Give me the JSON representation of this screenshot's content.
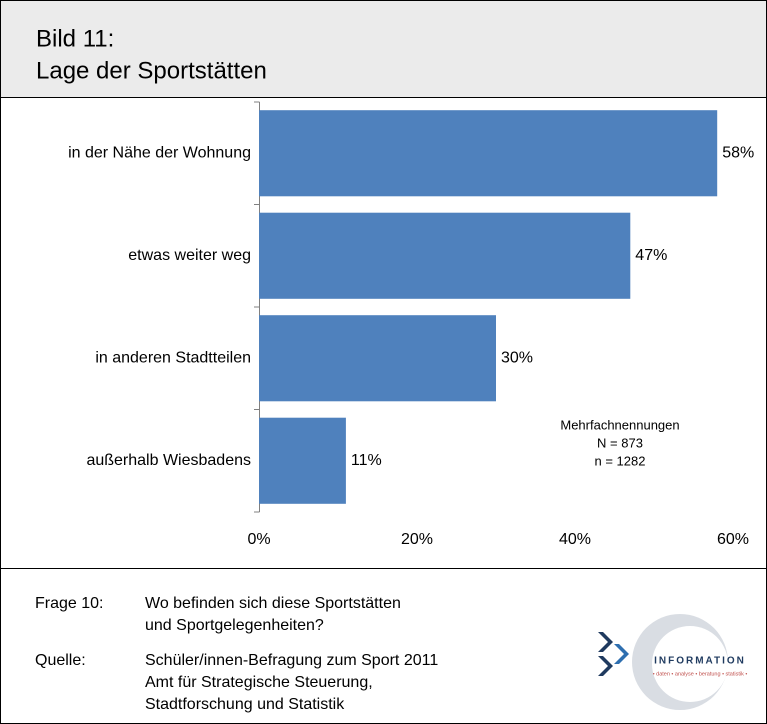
{
  "header": {
    "figure_label": "Bild 11:",
    "title": "Lage der Sportstätten"
  },
  "chart_data": {
    "type": "bar",
    "orientation": "horizontal",
    "categories": [
      "in der Nähe der Wohnung",
      "etwas weiter weg",
      "in anderen Stadtteilen",
      "außerhalb Wiesbadens"
    ],
    "values": [
      58,
      47,
      30,
      11
    ],
    "value_labels": [
      "58%",
      "47%",
      "30%",
      "11%"
    ],
    "color": "#4f81bd",
    "xlim": [
      0,
      60
    ],
    "xticks": [
      {
        "value": 0,
        "label": "0%"
      },
      {
        "value": 20,
        "label": "20%"
      },
      {
        "value": 40,
        "label": "40%"
      },
      {
        "value": 60,
        "label": "60%"
      }
    ],
    "grid": false,
    "annotations": [
      "Mehrfachnennungen",
      "N = 873",
      "n = 1282"
    ]
  },
  "footer": {
    "question_label": "Frage 10:",
    "question": [
      "Wo befinden sich diese Sportstätten",
      "und Sportgelegenheiten?"
    ],
    "source_label": "Quelle:",
    "source": [
      "Schüler/innen-Befragung zum Sport 2011",
      "Amt für Strategische Steuerung,",
      "Stadtforschung und Statistik"
    ],
    "logo": {
      "name": "INFORMATION",
      "tagline": "• daten • analyse • beratung • statistik •"
    }
  }
}
